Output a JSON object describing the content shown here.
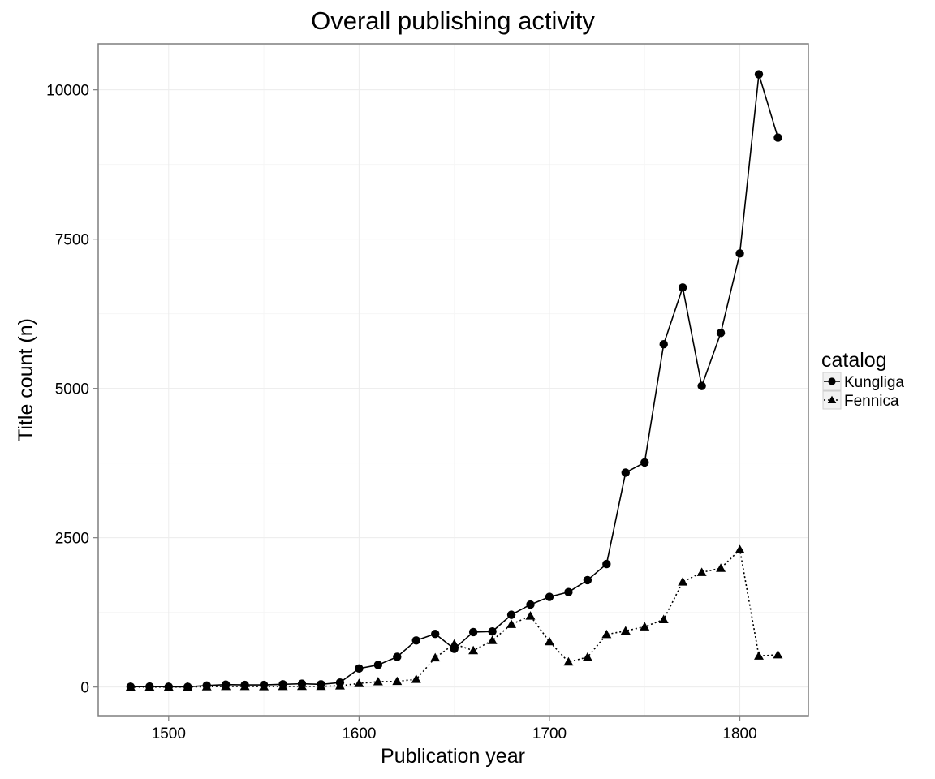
{
  "chart_data": {
    "type": "line",
    "title": "Overall publishing activity",
    "xlabel": "Publication year",
    "ylabel": "Title count (n)",
    "xlim": [
      1463,
      1836
    ],
    "ylim": [
      -480,
      10770
    ],
    "x_ticks": [
      1500,
      1600,
      1700,
      1800
    ],
    "y_ticks": [
      0,
      2500,
      5000,
      7500,
      10000
    ],
    "grid": true,
    "legend": {
      "title": "catalog",
      "placement": "right"
    },
    "x": [
      1480,
      1490,
      1500,
      1510,
      1520,
      1530,
      1540,
      1550,
      1560,
      1570,
      1580,
      1590,
      1600,
      1610,
      1620,
      1630,
      1640,
      1650,
      1660,
      1670,
      1680,
      1690,
      1700,
      1710,
      1720,
      1730,
      1740,
      1750,
      1760,
      1770,
      1780,
      1790,
      1800,
      1810,
      1820
    ],
    "series": [
      {
        "name": "Kungliga",
        "marker": "circle",
        "line": "solid",
        "color": "#000000",
        "values": [
          5,
          8,
          5,
          3,
          25,
          40,
          35,
          35,
          45,
          55,
          45,
          75,
          310,
          370,
          505,
          780,
          890,
          640,
          920,
          930,
          1210,
          1380,
          1510,
          1590,
          1790,
          2060,
          3590,
          3760,
          5740,
          6690,
          5040,
          5930,
          7260,
          10260,
          9200
        ]
      },
      {
        "name": "Fennica",
        "marker": "triangle",
        "line": "dotted",
        "color": "#000000",
        "values": [
          0,
          0,
          0,
          0,
          5,
          10,
          10,
          8,
          10,
          12,
          12,
          20,
          60,
          90,
          95,
          130,
          490,
          720,
          610,
          780,
          1050,
          1190,
          760,
          420,
          500,
          880,
          940,
          1010,
          1130,
          1760,
          1920,
          1990,
          2300,
          520,
          540
        ]
      }
    ]
  }
}
